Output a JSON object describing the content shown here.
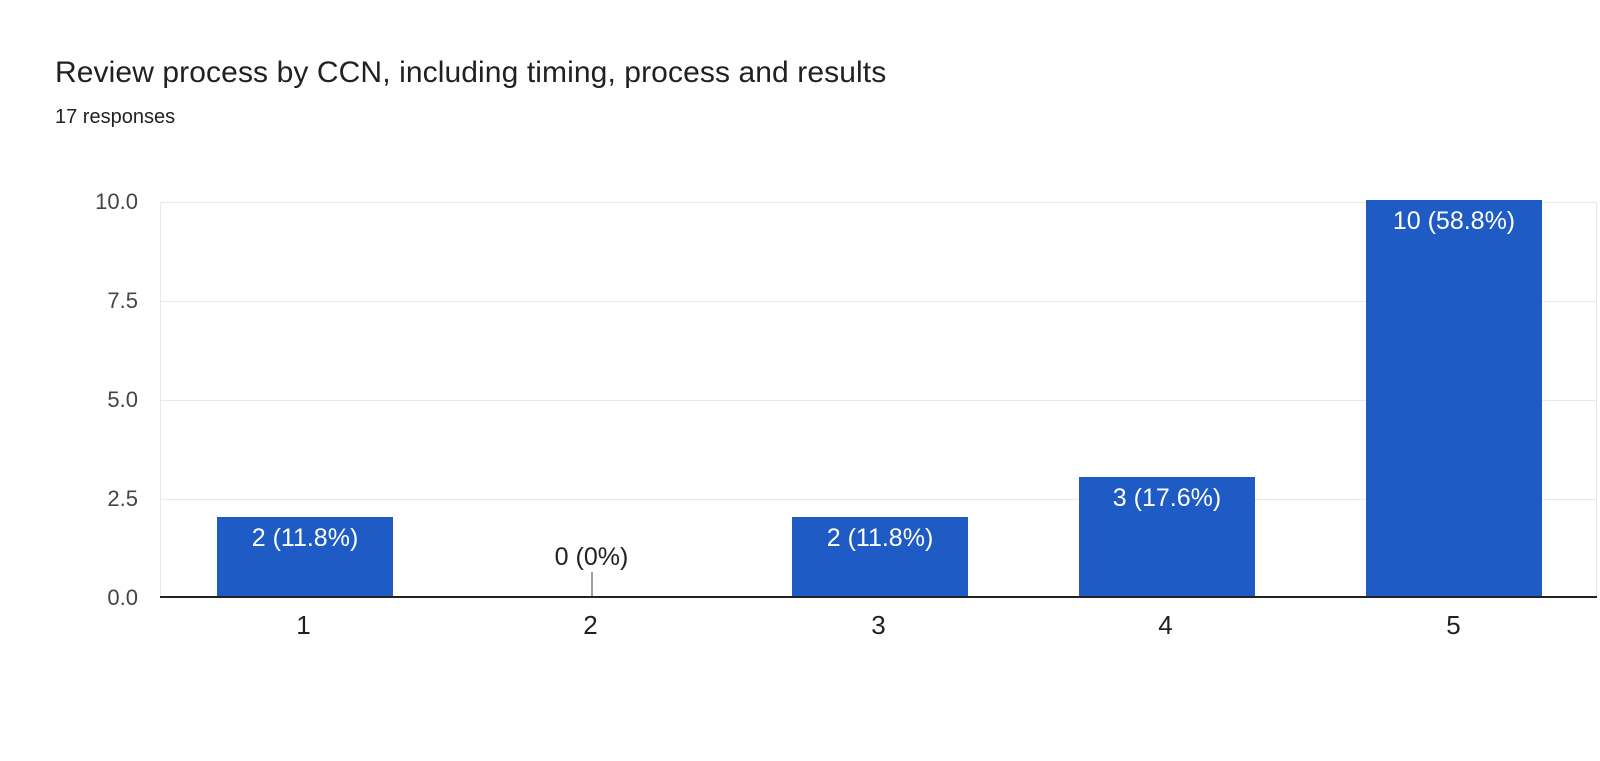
{
  "header": {
    "title": "Review process by CCN, including timing, process and results",
    "subtitle": "17 responses"
  },
  "chart_data": {
    "type": "bar",
    "title": "Review process by CCN, including timing, process and results",
    "subtitle": "17 responses",
    "total_responses": 17,
    "categories": [
      "1",
      "2",
      "3",
      "4",
      "5"
    ],
    "values": [
      2,
      0,
      2,
      3,
      10
    ],
    "percentages": [
      11.8,
      0,
      11.8,
      17.6,
      58.8
    ],
    "bar_labels": [
      "2 (11.8%)",
      "0 (0%)",
      "2 (11.8%)",
      "3 (17.6%)",
      "10 (58.8%)"
    ],
    "xlabel": "",
    "ylabel": "",
    "ylim": [
      0,
      10
    ],
    "ytick_labels": [
      "0.0",
      "2.5",
      "5.0",
      "7.5",
      "10.0"
    ],
    "grid": true,
    "legend_position": "none",
    "bar_color": "#1e5bc5",
    "bar_label_color": "#ffffff",
    "zero_label_color": "#212121"
  },
  "colors": {
    "background": "#ffffff",
    "bar": "#1e5bc5",
    "grid": "#e8e8e8",
    "axis": "#212121",
    "y_tick_text": "#444444",
    "x_tick_text": "#212121",
    "title_text": "#212121",
    "annotation_stem": "#9e9e9e"
  }
}
